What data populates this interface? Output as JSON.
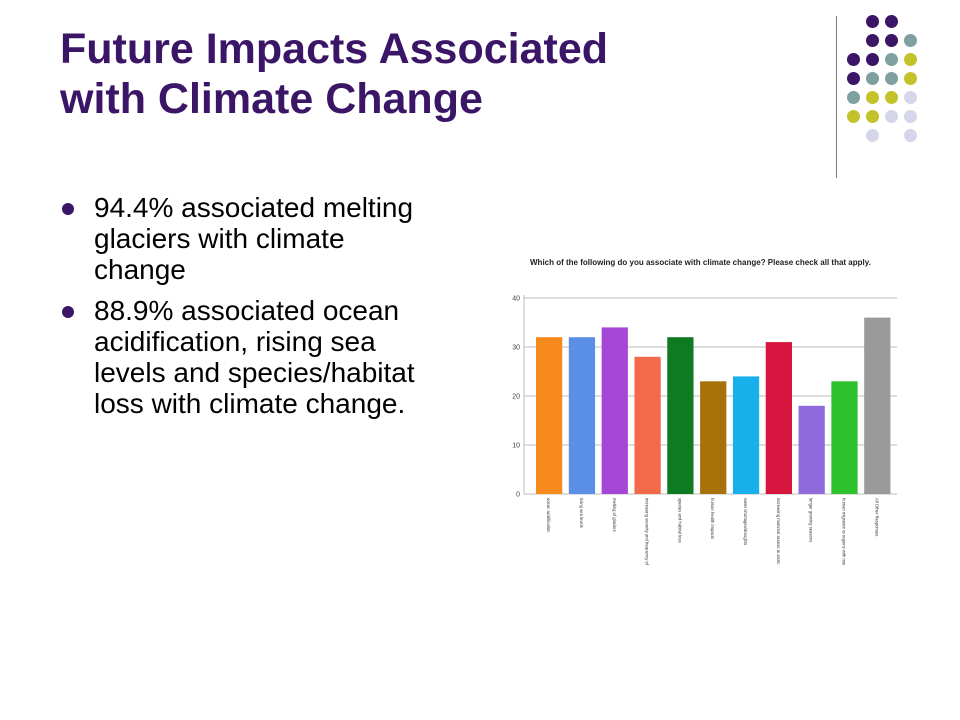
{
  "slide": {
    "title_line1": "Future Impacts Associated",
    "title_line2": "with Climate Change",
    "bullets": [
      "94.4% associated melting glaciers with climate change",
      "88.9% associated ocean acidification, rising sea levels and species/habitat loss with climate change."
    ],
    "dot_colors": [
      "#3b1566",
      "#7fa0a0",
      "#c3c22a",
      "#d6d6ea"
    ]
  },
  "chart_data": {
    "type": "bar",
    "title": "Which of the following do you associate with climate change? Please check all that apply.",
    "xlabel": "",
    "ylabel": "",
    "ylim": [
      0,
      40
    ],
    "yticks": [
      0,
      10,
      20,
      30,
      40
    ],
    "grid": true,
    "categories": [
      "ocean acidification",
      "rising sea levels",
      "melting of glaciers",
      "increasing severity and frequency of storms",
      "species and habitat loss",
      "human health impacts",
      "water shortages/droughts",
      "increasing mammal access to arctic regions",
      "longer growing seasons",
      "human migration to regions with more water and better climate",
      "All Other Responses"
    ],
    "values": [
      32,
      32,
      34,
      28,
      32,
      23,
      24,
      31,
      18,
      23,
      36
    ],
    "colors": [
      "#f78a1d",
      "#5b8fe6",
      "#a447d6",
      "#f26a4a",
      "#0e7a22",
      "#a8720b",
      "#18b0ea",
      "#d6163e",
      "#8e6adc",
      "#2dc22d",
      "#9a9a9a"
    ]
  }
}
